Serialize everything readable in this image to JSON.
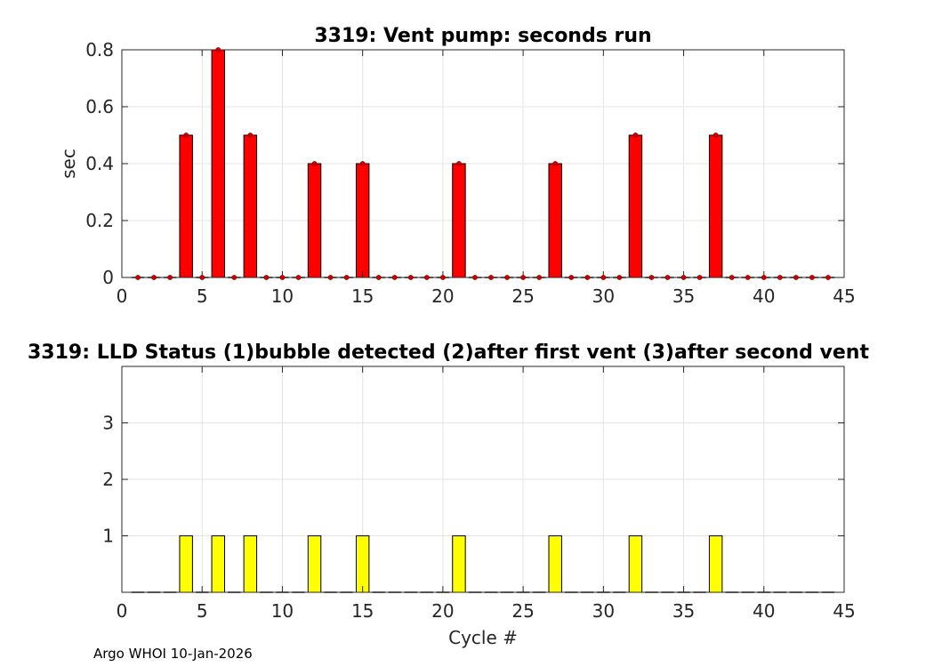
{
  "footer": "Argo WHOI 10-Jan-2026",
  "colors": {
    "vent_bar": "#ff0000",
    "lld_bar": "#ffff00",
    "grid": "#e3e3e3",
    "axis": "#262626"
  },
  "chart_data": [
    {
      "type": "bar",
      "title": "3319: Vent pump: seconds run",
      "xlabel": "",
      "ylabel": "sec",
      "xlim": [
        0,
        45
      ],
      "ylim": [
        0,
        0.8
      ],
      "xticks": [
        "0",
        "5",
        "10",
        "15",
        "20",
        "25",
        "30",
        "35",
        "40",
        "45"
      ],
      "yticks": [
        "0",
        "0.2",
        "0.4",
        "0.6",
        "0.8"
      ],
      "grid": true,
      "x": [
        1,
        2,
        3,
        4,
        5,
        6,
        7,
        8,
        9,
        10,
        11,
        12,
        13,
        14,
        15,
        16,
        17,
        18,
        19,
        20,
        21,
        22,
        23,
        24,
        25,
        26,
        27,
        28,
        29,
        30,
        31,
        32,
        33,
        34,
        35,
        36,
        37,
        38,
        39,
        40,
        41,
        42,
        43,
        44
      ],
      "values": [
        0,
        0,
        0,
        0.5,
        0,
        0.8,
        0,
        0.5,
        0,
        0,
        0,
        0.4,
        0,
        0,
        0.4,
        0,
        0,
        0,
        0,
        0,
        0.4,
        0,
        0,
        0,
        0,
        0,
        0.4,
        0,
        0,
        0,
        0,
        0.5,
        0,
        0,
        0,
        0,
        0.5,
        0,
        0,
        0,
        0,
        0,
        0,
        0
      ],
      "markers": "red dots"
    },
    {
      "type": "bar",
      "title": "3319: LLD Status   (1)bubble detected   (2)after first vent  (3)after second vent",
      "xlabel": "Cycle #",
      "ylabel": "",
      "xlim": [
        0,
        45
      ],
      "ylim": [
        0,
        4
      ],
      "xticks": [
        "0",
        "5",
        "10",
        "15",
        "20",
        "25",
        "30",
        "35",
        "40",
        "45"
      ],
      "yticks": [
        "1",
        "2",
        "3"
      ],
      "grid": true,
      "x": [
        1,
        2,
        3,
        4,
        5,
        6,
        7,
        8,
        9,
        10,
        11,
        12,
        13,
        14,
        15,
        16,
        17,
        18,
        19,
        20,
        21,
        22,
        23,
        24,
        25,
        26,
        27,
        28,
        29,
        30,
        31,
        32,
        33,
        34,
        35,
        36,
        37,
        38,
        39,
        40,
        41,
        42,
        43,
        44
      ],
      "values": [
        0,
        0,
        0,
        1,
        0,
        1,
        0,
        1,
        0,
        0,
        0,
        1,
        0,
        0,
        1,
        0,
        0,
        0,
        0,
        0,
        1,
        0,
        0,
        0,
        0,
        0,
        1,
        0,
        0,
        0,
        0,
        1,
        0,
        0,
        0,
        0,
        1,
        0,
        0,
        0,
        0,
        0,
        0,
        0
      ]
    }
  ]
}
